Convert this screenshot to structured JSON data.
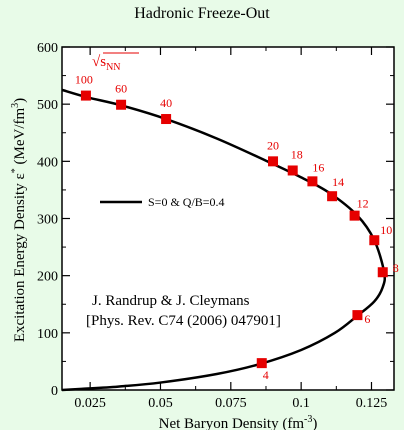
{
  "chart_data": {
    "type": "scatter",
    "title": "Hadronic Freeze-Out",
    "xlabel_prefix": "Net Baryon Density  (fm",
    "xlabel_sup": "-3",
    "xlabel_suffix": ")",
    "ylabel_prefix": "Excitation Energy Density ε",
    "ylabel_sup": "*",
    "ylabel_mid": "  (MeV/fm",
    "ylabel_sup2": "3",
    "ylabel_suffix": ")",
    "xlim": [
      0.015,
      0.133
    ],
    "ylim": [
      0,
      600
    ],
    "xticks": [
      0.025,
      0.05,
      0.075,
      0.1,
      0.125
    ],
    "xtick_labels": [
      "0.025",
      "0.05",
      "0.075",
      "0.1",
      "0.125"
    ],
    "yticks": [
      0,
      100,
      200,
      300,
      400,
      500,
      600
    ],
    "ytick_labels": [
      "0",
      "100",
      "200",
      "300",
      "400",
      "500",
      "600"
    ],
    "curve": {
      "name": "S=0 & Q/B=0.4",
      "color": "#000000",
      "x": [
        0.015,
        0.024,
        0.036,
        0.052,
        0.07,
        0.088,
        0.1,
        0.11,
        0.12,
        0.126,
        0.1295,
        0.129,
        0.126,
        0.12,
        0.112,
        0.1,
        0.085,
        0.07,
        0.05,
        0.035,
        0.022,
        0.015
      ],
      "y": [
        525,
        512,
        498,
        474,
        440,
        400,
        372,
        345,
        305,
        262,
        206,
        180,
        155,
        130,
        100,
        70,
        45,
        28,
        13,
        6,
        2,
        0
      ]
    },
    "markers": {
      "color": "#e60000",
      "label_color": "#e60000",
      "points": [
        {
          "label": "100",
          "x": 0.0235,
          "y": 515
        },
        {
          "label": "60",
          "x": 0.036,
          "y": 499
        },
        {
          "label": "40",
          "x": 0.052,
          "y": 474
        },
        {
          "label": "20",
          "x": 0.09,
          "y": 400
        },
        {
          "label": "18",
          "x": 0.097,
          "y": 384
        },
        {
          "label": "16",
          "x": 0.104,
          "y": 365
        },
        {
          "label": "14",
          "x": 0.111,
          "y": 339
        },
        {
          "label": "12",
          "x": 0.119,
          "y": 305
        },
        {
          "label": "10",
          "x": 0.126,
          "y": 262
        },
        {
          "label": "8",
          "x": 0.129,
          "y": 206
        },
        {
          "label": "6",
          "x": 0.12,
          "y": 131
        },
        {
          "label": "4",
          "x": 0.086,
          "y": 47
        }
      ]
    },
    "sqrt_label": "√s",
    "sqrt_sub": "NN",
    "legend_label": "S=0 & Q/B=0.4",
    "citation_line1": "J. Randrup & J. Cleymans",
    "citation_line2": "[Phys. Rev. C74 (2006) 047901]"
  }
}
